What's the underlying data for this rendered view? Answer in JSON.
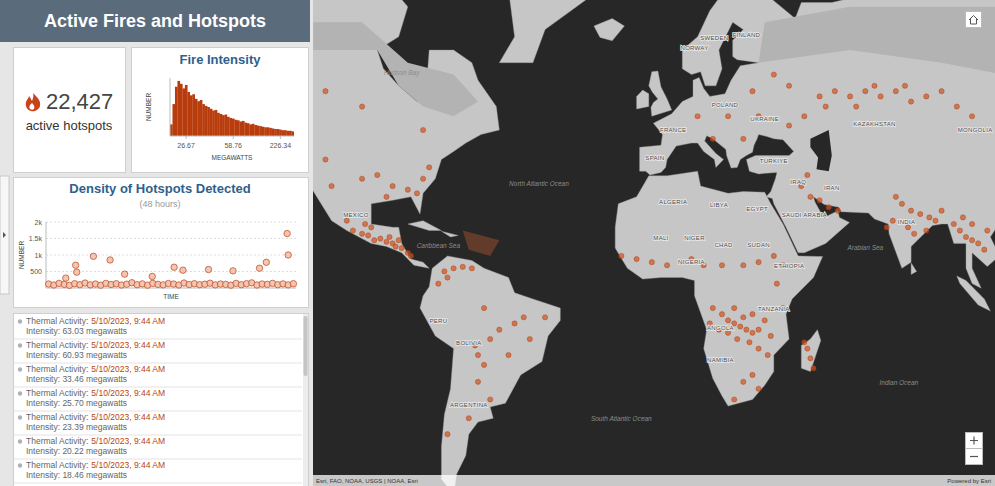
{
  "header": {
    "title": "Active Fires and Hotspots"
  },
  "indicator": {
    "value": "22,427",
    "label": "active hotspots"
  },
  "chart_data": [
    {
      "type": "bar",
      "title": "Fire Intensity",
      "x_label": "MEGAWATTS",
      "y_label": "NUMBER",
      "categories": [
        null,
        null,
        null,
        null,
        null,
        null,
        "26.67",
        null,
        null,
        null,
        null,
        null,
        null,
        null,
        null,
        null,
        null,
        null,
        null,
        null,
        null,
        null,
        null,
        null,
        null,
        "58.76",
        null,
        null,
        null,
        null,
        null,
        null,
        null,
        null,
        null,
        null,
        null,
        null,
        null,
        null,
        null,
        null,
        null,
        null,
        "226.34",
        null,
        null,
        null,
        null,
        null
      ],
      "values": [
        20,
        55,
        85,
        95,
        90,
        82,
        88,
        76,
        70,
        72,
        64,
        60,
        62,
        55,
        52,
        50,
        47,
        44,
        45,
        40,
        38,
        36,
        37,
        33,
        31,
        30,
        28,
        27,
        25,
        26,
        23,
        22,
        20,
        21,
        19,
        18,
        17,
        16,
        15,
        15,
        14,
        13,
        12,
        12,
        11,
        10,
        10,
        9,
        9,
        8
      ],
      "color": "#b83c0c",
      "ylim": [
        0,
        100
      ],
      "tick_labels": "x"
    },
    {
      "type": "scatter",
      "title": "Density of Hotspots Detected",
      "subtitle": "(48 hours)",
      "x_label": "TIME",
      "y_label": "NUMBER",
      "x": [
        0.5,
        1.5,
        2.5,
        3.5,
        4.5,
        5.5,
        6.5,
        7.5,
        8.5,
        9.5,
        10.5,
        11.5,
        12.5,
        13.5,
        14.5,
        15.5,
        16.5,
        17.5,
        18.5,
        19.5,
        20.5,
        21.5,
        22.5,
        23.5,
        24.5,
        25.5,
        26.5,
        27.5,
        28.5,
        29.5,
        30.5,
        31.5,
        32.5,
        33.5,
        34.5,
        35.5,
        36.5,
        37.5,
        38.5,
        39.5,
        40.5,
        41.5,
        42.5,
        43.5,
        44.5,
        45.5,
        46.5,
        47.5,
        5.7,
        5.9,
        9.1,
        12.3,
        15.1,
        24.6,
        26.3,
        31.2,
        35.9,
        41,
        42.3,
        46.3,
        46.5,
        3.8,
        20.4
      ],
      "values": [
        120,
        90,
        140,
        110,
        80,
        130,
        100,
        150,
        95,
        120,
        85,
        140,
        105,
        130,
        90,
        115,
        160,
        100,
        125,
        85,
        140,
        110,
        95,
        135,
        120,
        90,
        150,
        105,
        130,
        100,
        115,
        145,
        95,
        120,
        110,
        85,
        140,
        100,
        130,
        155,
        90,
        120,
        110,
        140,
        100,
        125,
        95,
        130,
        690,
        480,
        960,
        850,
        420,
        630,
        540,
        560,
        520,
        600,
        780,
        1650,
        1000,
        300,
        350
      ],
      "color": "#c2562c",
      "marker": "circle",
      "xlim": [
        0,
        48
      ],
      "ylim": [
        0,
        2000
      ],
      "yticks": [
        500,
        {
          "value": 1000,
          "label": "1k"
        },
        {
          "value": 1500,
          "label": "1.5k"
        },
        {
          "value": 2000,
          "label": "2k"
        }
      ],
      "grid": true,
      "tick_labels": "y"
    }
  ],
  "list": {
    "items": [
      {
        "label": "Thermal Activity:",
        "time": "5/10/2023, 9:44 AM",
        "intensity": "Intensity: 63.03 megawatts"
      },
      {
        "label": "Thermal Activity:",
        "time": "5/10/2023, 9:44 AM",
        "intensity": "Intensity: 60.93 megawatts"
      },
      {
        "label": "Thermal Activity:",
        "time": "5/10/2023, 9:44 AM",
        "intensity": "Intensity: 33.46 megawatts"
      },
      {
        "label": "Thermal Activity:",
        "time": "5/10/2023, 9:44 AM",
        "intensity": "Intensity: 25.70 megawatts"
      },
      {
        "label": "Thermal Activity:",
        "time": "5/10/2023, 9:44 AM",
        "intensity": "Intensity: 23.39 megawatts"
      },
      {
        "label": "Thermal Activity:",
        "time": "5/10/2023, 9:44 AM",
        "intensity": "Intensity: 20.22 megawatts"
      },
      {
        "label": "Thermal Activity:",
        "time": "5/10/2023, 9:44 AM",
        "intensity": "Intensity: 18.46 megawatts"
      }
    ]
  },
  "map": {
    "hotspots": [
      [
        -103,
        20
      ],
      [
        -100,
        19
      ],
      [
        -98,
        18.5
      ],
      [
        -96,
        17
      ],
      [
        -94,
        17.5
      ],
      [
        -92,
        16.5
      ],
      [
        -90,
        16
      ],
      [
        -89,
        15
      ],
      [
        -87,
        14.5
      ],
      [
        -85,
        13
      ],
      [
        -84,
        12
      ],
      [
        -99,
        22
      ],
      [
        -97,
        21
      ],
      [
        -91,
        18
      ],
      [
        -105,
        23
      ],
      [
        -88,
        17
      ],
      [
        -90,
        33
      ],
      [
        -85,
        32
      ],
      [
        -82,
        31
      ],
      [
        -95,
        36
      ],
      [
        -100,
        35
      ],
      [
        -80,
        35
      ],
      [
        -110,
        33
      ],
      [
        -112,
        40
      ],
      [
        -78,
        38
      ],
      [
        -92,
        30
      ],
      [
        -112,
        55
      ],
      [
        -100,
        52
      ],
      [
        -80,
        47
      ],
      [
        -73,
        7
      ],
      [
        -70,
        8
      ],
      [
        -67,
        8.5
      ],
      [
        -64,
        8
      ],
      [
        -72,
        5
      ],
      [
        -75,
        3
      ],
      [
        -50,
        -10
      ],
      [
        -55,
        -12
      ],
      [
        -47,
        -8
      ],
      [
        -52,
        -20
      ],
      [
        -45,
        -15
      ],
      [
        -60,
        -5
      ],
      [
        -40,
        -8
      ],
      [
        -58,
        -15
      ],
      [
        -63,
        -17
      ],
      [
        -62,
        -20
      ],
      [
        -60,
        -23
      ],
      [
        -62,
        -28
      ],
      [
        -58,
        -33
      ],
      [
        -65,
        -38
      ],
      [
        -72,
        -42
      ],
      [
        -15,
        12
      ],
      [
        -10,
        11
      ],
      [
        -5,
        10
      ],
      [
        0,
        9
      ],
      [
        5,
        10
      ],
      [
        8,
        11
      ],
      [
        12,
        9
      ],
      [
        18,
        9
      ],
      [
        25,
        9
      ],
      [
        30,
        10
      ],
      [
        35,
        12
      ],
      [
        38,
        9
      ],
      [
        15,
        -5
      ],
      [
        18,
        -7
      ],
      [
        20,
        -9
      ],
      [
        22,
        -10
      ],
      [
        24,
        -11
      ],
      [
        26,
        -12
      ],
      [
        28,
        -13
      ],
      [
        30,
        -12
      ],
      [
        20,
        -13
      ],
      [
        17,
        -12
      ],
      [
        23,
        -15
      ],
      [
        27,
        -16
      ],
      [
        25,
        -8
      ],
      [
        28,
        -7
      ],
      [
        32,
        -9
      ],
      [
        34,
        -14
      ],
      [
        22,
        -5
      ],
      [
        14,
        -10
      ],
      [
        30,
        -18
      ],
      [
        33,
        -20
      ],
      [
        28,
        -26
      ],
      [
        25,
        -28
      ],
      [
        30,
        -30
      ],
      [
        22,
        -33
      ],
      [
        46,
        -18
      ],
      [
        47,
        -21
      ],
      [
        45,
        -16
      ],
      [
        48,
        -24
      ],
      [
        38,
        -5
      ],
      [
        36,
        3
      ],
      [
        2,
        47
      ],
      [
        10,
        50
      ],
      [
        20,
        50
      ],
      [
        25,
        45
      ],
      [
        30,
        50
      ],
      [
        40,
        48
      ],
      [
        15,
        45
      ],
      [
        28,
        55
      ],
      [
        50,
        54
      ],
      [
        55,
        55
      ],
      [
        60,
        54
      ],
      [
        65,
        55
      ],
      [
        70,
        54
      ],
      [
        75,
        55
      ],
      [
        80,
        53
      ],
      [
        85,
        54
      ],
      [
        52,
        52
      ],
      [
        62,
        52
      ],
      [
        68,
        56
      ],
      [
        78,
        56
      ],
      [
        45,
        50
      ],
      [
        90,
        55
      ],
      [
        95,
        52
      ],
      [
        100,
        50
      ],
      [
        35,
        58
      ],
      [
        40,
        56
      ],
      [
        44,
        33
      ],
      [
        47,
        30
      ],
      [
        50,
        29
      ],
      [
        53,
        27
      ],
      [
        46,
        36
      ],
      [
        56,
        26
      ],
      [
        75,
        30
      ],
      [
        77,
        28
      ],
      [
        80,
        26
      ],
      [
        83,
        25
      ],
      [
        86,
        24
      ],
      [
        88,
        23
      ],
      [
        79,
        21
      ],
      [
        81,
        19
      ],
      [
        74,
        23
      ],
      [
        72,
        21
      ],
      [
        90,
        26
      ],
      [
        85,
        20
      ],
      [
        94,
        22
      ],
      [
        96,
        20
      ],
      [
        98,
        18
      ],
      [
        100,
        17
      ],
      [
        102,
        16
      ],
      [
        104,
        14
      ],
      [
        97,
        24
      ],
      [
        105,
        20
      ],
      [
        100,
        22
      ]
    ],
    "countries": [
      {
        "text": "NORWAY",
        "lon": 9,
        "lat": 62
      },
      {
        "text": "SWEDEN",
        "lon": 15.5,
        "lat": 63.5
      },
      {
        "text": "FINLAND",
        "lon": 26,
        "lat": 64
      },
      {
        "text": "POLAND",
        "lon": 19,
        "lat": 52
      },
      {
        "text": "UKRAINE",
        "lon": 32,
        "lat": 49
      },
      {
        "text": "FRANCE",
        "lon": 2,
        "lat": 46.5
      },
      {
        "text": "SPAIN",
        "lon": -4,
        "lat": 40
      },
      {
        "text": "TÜRKIYE",
        "lon": 35,
        "lat": 39
      },
      {
        "text": "KAZAKHSTAN",
        "lon": 68,
        "lat": 48
      },
      {
        "text": "MONGOLIA",
        "lon": 101,
        "lat": 46.5
      },
      {
        "text": "IRAN",
        "lon": 54,
        "lat": 32
      },
      {
        "text": "IRAQ",
        "lon": 43,
        "lat": 33.5
      },
      {
        "text": "SAUDI ARABIA",
        "lon": 45,
        "lat": 24
      },
      {
        "text": "INDIA",
        "lon": 78.5,
        "lat": 22
      },
      {
        "text": "ALGERIA",
        "lon": 2,
        "lat": 28
      },
      {
        "text": "LIBYA",
        "lon": 17,
        "lat": 27
      },
      {
        "text": "EGYPT",
        "lon": 29.5,
        "lat": 26
      },
      {
        "text": "MALI",
        "lon": -2,
        "lat": 17
      },
      {
        "text": "NIGER",
        "lon": 9,
        "lat": 17
      },
      {
        "text": "CHAD",
        "lon": 18.5,
        "lat": 15
      },
      {
        "text": "SUDAN",
        "lon": 30,
        "lat": 15
      },
      {
        "text": "NIGERIA",
        "lon": 8,
        "lat": 9.5
      },
      {
        "text": "ETHIOPIA",
        "lon": 40,
        "lat": 8
      },
      {
        "text": "TANZANIA",
        "lon": 35,
        "lat": -6
      },
      {
        "text": "ANGOLA",
        "lon": 17.5,
        "lat": -12
      },
      {
        "text": "NAMIBIA",
        "lon": 17.5,
        "lat": -22
      },
      {
        "text": "MEXICO",
        "lon": -102,
        "lat": 24
      },
      {
        "text": "PERU",
        "lon": -75,
        "lat": -10
      },
      {
        "text": "BOLIVIA",
        "lon": -65,
        "lat": -17
      },
      {
        "text": "ARGENTINA",
        "lon": -65,
        "lat": -35
      }
    ],
    "oceans": [
      {
        "text": "North Atlantic Ocean",
        "lon": -42,
        "lat": 33
      },
      {
        "text": "South Atlantic Ocean",
        "lon": -15,
        "lat": -38.6
      },
      {
        "text": "Indian Ocean",
        "lon": 76,
        "lat": -29
      },
      {
        "text": "Arabian Sea",
        "lon": 65,
        "lat": 14
      },
      {
        "text": "Caribbean Sea",
        "lon": -75,
        "lat": 14.5
      },
      {
        "text": "Hudson Bay",
        "lon": -87,
        "lat": 58
      }
    ],
    "attribution": "Esri, FAO, NOAA, USGS | NOAA, Esri",
    "powered_by": "Powered by Esri"
  }
}
